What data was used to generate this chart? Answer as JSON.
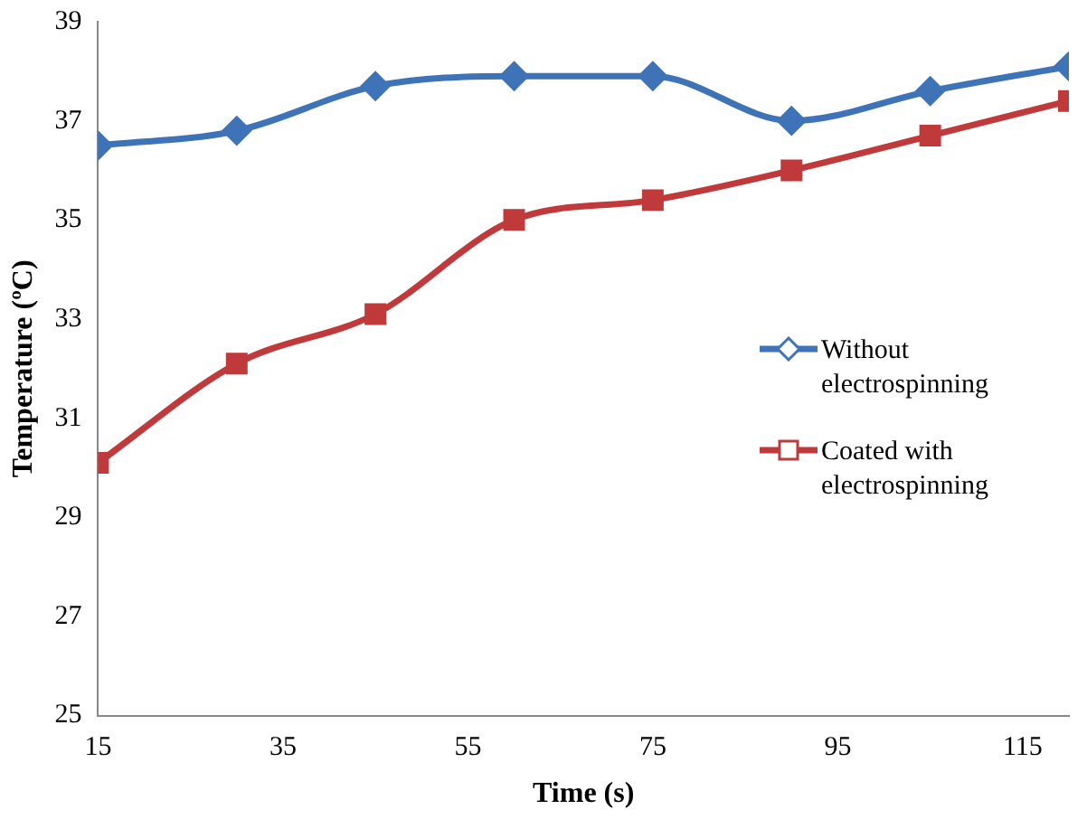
{
  "chart_data": {
    "type": "line",
    "xlabel": "Time (s)",
    "ylabel": "Temperature (ºC)",
    "x": [
      15,
      30,
      45,
      60,
      75,
      90,
      105,
      120
    ],
    "series": [
      {
        "name": "Without electrospinning",
        "color": "#3f73b8",
        "marker": "diamond",
        "values": [
          36.5,
          36.8,
          37.7,
          37.9,
          37.9,
          37.0,
          37.6,
          38.1
        ]
      },
      {
        "name": "Coated with electrospinning",
        "color": "#c0393b",
        "marker": "square",
        "values": [
          30.1,
          32.1,
          33.1,
          35.0,
          35.4,
          36.0,
          36.7,
          37.4
        ]
      }
    ],
    "xlim": [
      15,
      120
    ],
    "xticks": [
      15,
      35,
      55,
      75,
      95,
      115
    ],
    "ylim": [
      25,
      39
    ],
    "yticks": [
      25,
      27,
      29,
      31,
      33,
      35,
      37,
      39
    ],
    "grid": false,
    "legend": "right",
    "line_style": "solid"
  }
}
